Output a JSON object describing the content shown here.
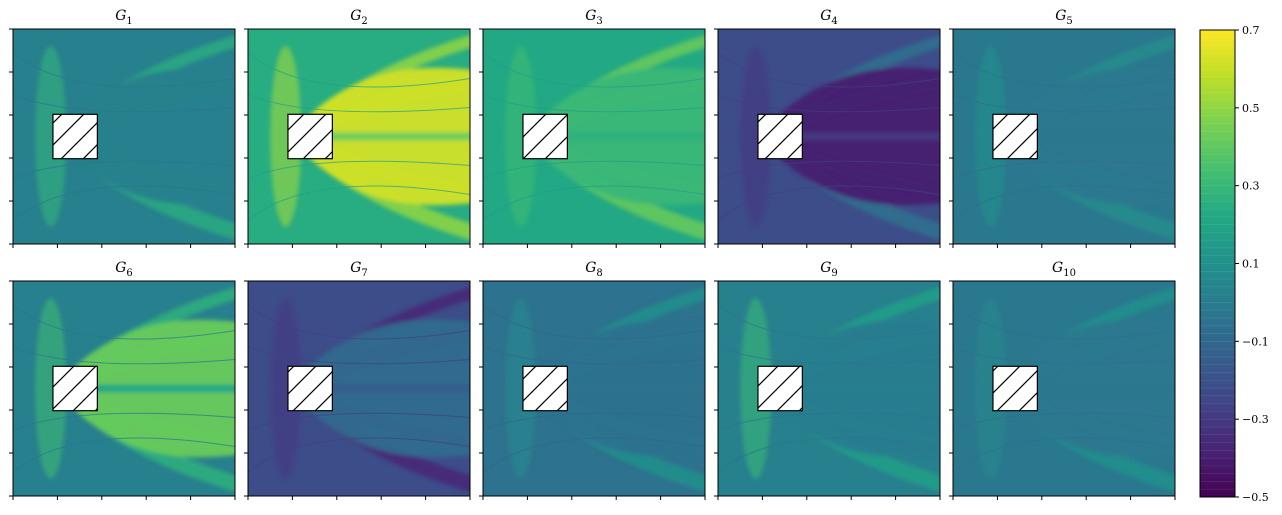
{
  "chart_data": {
    "type": "heatmap",
    "layout": {
      "rows": 2,
      "cols": 5
    },
    "title": "",
    "xlabel": "",
    "ylabel": "",
    "xlim": [
      0,
      1
    ],
    "ylim": [
      0,
      1
    ],
    "obstacle": {
      "shape": "square",
      "hatch": "diagonal",
      "center": [
        0.28,
        0.5
      ],
      "size": 0.2
    },
    "colorbar": {
      "range": [
        -0.5,
        0.7
      ],
      "ticks": [
        0.7,
        0.5,
        0.3,
        0.1,
        -0.1,
        -0.3,
        -0.5
      ],
      "tick_labels": [
        "0.7",
        "0.5",
        "0.3",
        "0.1",
        "−0.1",
        "−0.3",
        "−0.5"
      ],
      "colormap": "viridis",
      "stops": [
        "#440154",
        "#482475",
        "#414487",
        "#355f8d",
        "#2a788e",
        "#21918c",
        "#22a884",
        "#44bf70",
        "#7ad151",
        "#bddf26",
        "#fde725"
      ]
    },
    "panels": [
      {
        "label": "G",
        "sub": "1",
        "background": 0.02,
        "wake": 0.02,
        "front": 0.28,
        "bands": 0.24
      },
      {
        "label": "G",
        "sub": "2",
        "background": 0.24,
        "wake": 0.62,
        "front": 0.52,
        "bands": 0.5
      },
      {
        "label": "G",
        "sub": "3",
        "background": 0.22,
        "wake": 0.3,
        "front": 0.32,
        "bands": 0.42
      },
      {
        "label": "G",
        "sub": "4",
        "background": -0.22,
        "wake": -0.4,
        "front": -0.3,
        "bands": -0.05
      },
      {
        "label": "G",
        "sub": "5",
        "background": -0.02,
        "wake": -0.02,
        "front": 0.1,
        "bands": 0.08
      },
      {
        "label": "G",
        "sub": "6",
        "background": 0.02,
        "wake": 0.42,
        "front": 0.32,
        "bands": 0.26
      },
      {
        "label": "G",
        "sub": "7",
        "background": -0.22,
        "wake": -0.08,
        "front": -0.3,
        "bands": -0.38
      },
      {
        "label": "G",
        "sub": "8",
        "background": -0.05,
        "wake": -0.05,
        "front": 0.06,
        "bands": 0.1
      },
      {
        "label": "G",
        "sub": "9",
        "background": 0.02,
        "wake": 0.0,
        "front": 0.3,
        "bands": 0.18
      },
      {
        "label": "G",
        "sub": "10",
        "background": -0.02,
        "wake": -0.02,
        "front": 0.06,
        "bands": 0.1
      }
    ]
  }
}
